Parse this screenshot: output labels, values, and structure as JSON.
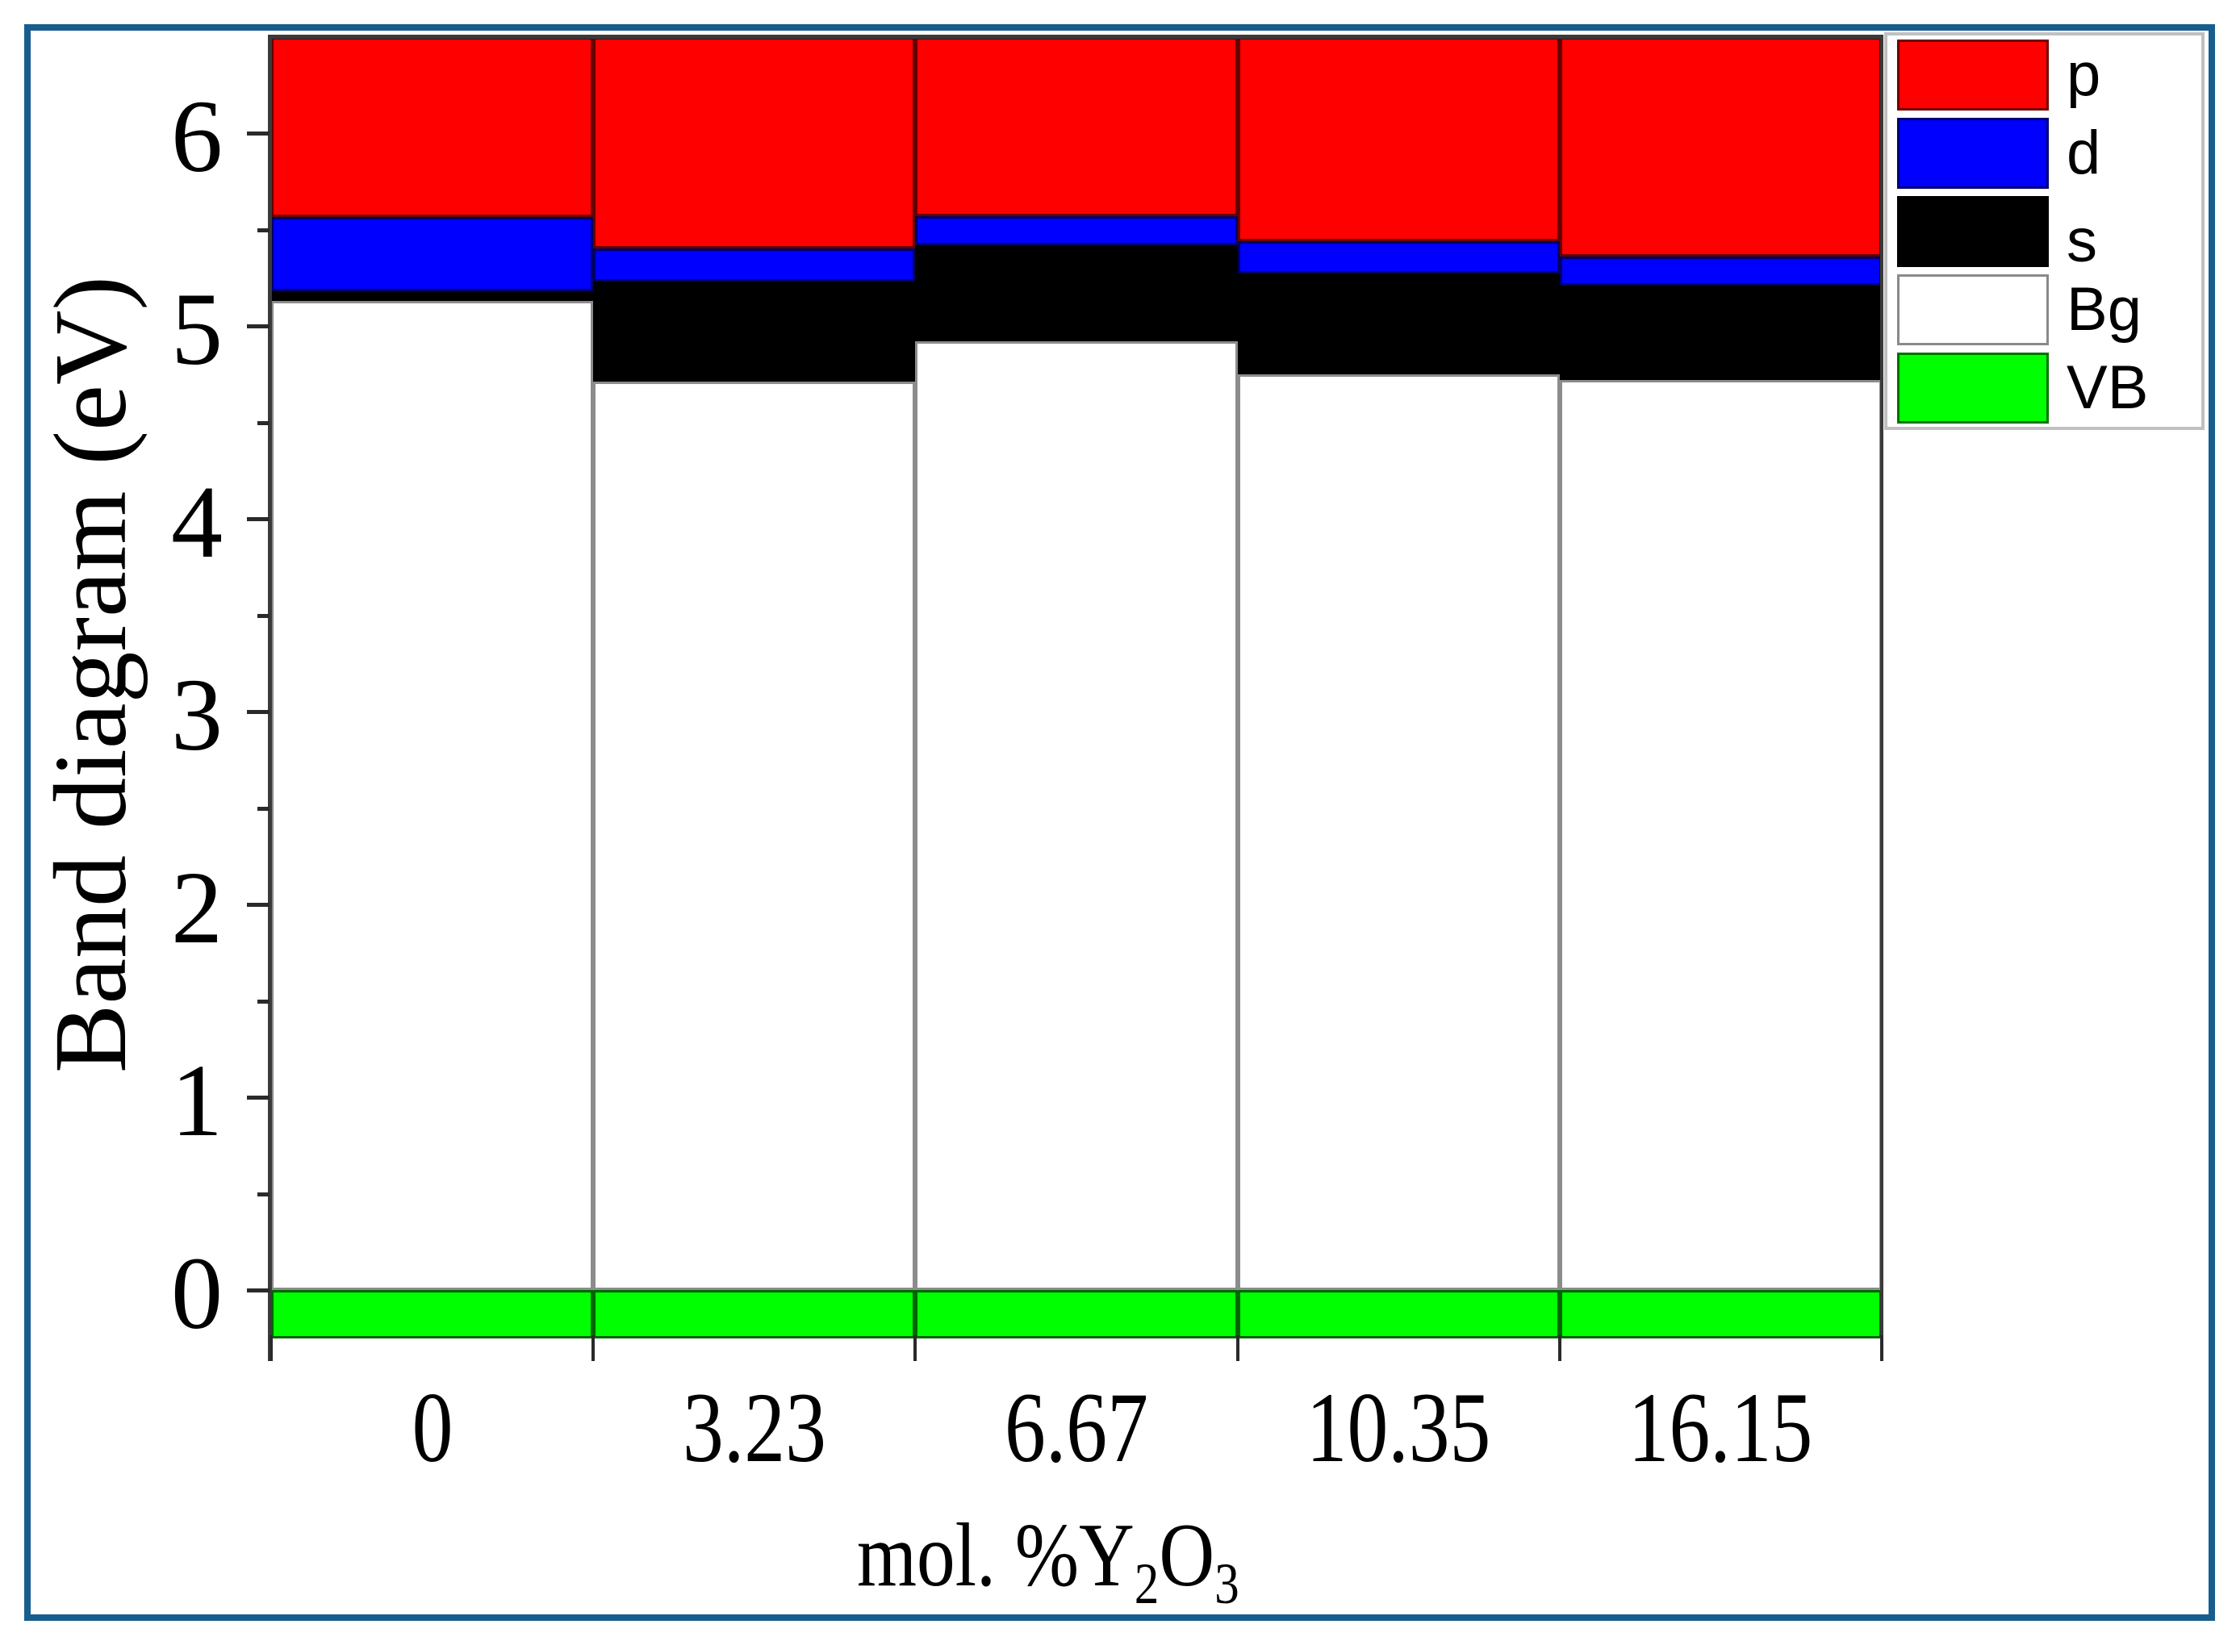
{
  "chart_data": {
    "type": "bar",
    "subtype": "stacked-floating-band-diagram",
    "title": "",
    "xlabel": "mol. %Y2O3",
    "xlabel_parts": {
      "prefix": "mol. %Y",
      "sub1": "2",
      "mid": "O",
      "sub2": "3"
    },
    "ylabel": "Band diagram (eV)",
    "ylim": [
      -0.25,
      6.5
    ],
    "yticks": [
      0,
      1,
      2,
      3,
      4,
      5,
      6
    ],
    "ytick_labels": [
      "0",
      "1",
      "2",
      "3",
      "4",
      "5",
      "6"
    ],
    "minor_yticks_step": 0.5,
    "grid": false,
    "legend_position": "top-right-outside",
    "categories": [
      "0",
      "3.23",
      "6.67",
      "10.35",
      "16.15"
    ],
    "series": [
      {
        "name": "VB",
        "color": "#00ff00",
        "bottom": [
          -0.25,
          -0.25,
          -0.25,
          -0.25,
          -0.25
        ],
        "top": [
          0,
          0,
          0,
          0,
          0
        ]
      },
      {
        "name": "Bg",
        "color": "#ffffff",
        "bottom": [
          0,
          0,
          0,
          0,
          0
        ],
        "top": [
          5.13,
          4.71,
          4.92,
          4.75,
          4.72
        ]
      },
      {
        "name": "s",
        "color": "#000000",
        "bottom": [
          5.13,
          4.71,
          4.92,
          4.75,
          4.72
        ],
        "top": [
          5.18,
          5.23,
          5.42,
          5.27,
          5.21
        ]
      },
      {
        "name": "d",
        "color": "#0000ff",
        "bottom": [
          5.18,
          5.23,
          5.42,
          5.27,
          5.21
        ],
        "top": [
          5.565,
          5.4,
          5.57,
          5.44,
          5.36
        ]
      },
      {
        "name": "p",
        "color": "#ff0000",
        "bottom": [
          5.565,
          5.4,
          5.57,
          5.44,
          5.36
        ],
        "top": [
          6.5,
          6.5,
          6.5,
          6.5,
          6.5
        ]
      }
    ],
    "band_gap_values": [
      5.13,
      4.71,
      4.92,
      4.75,
      4.72
    ]
  },
  "legend": [
    {
      "label": "p",
      "color": "#ff0000"
    },
    {
      "label": "d",
      "color": "#0000ff"
    },
    {
      "label": "s",
      "color": "#000000"
    },
    {
      "label": "Bg",
      "color": "#ffffff"
    },
    {
      "label": "VB",
      "color": "#00ff00"
    }
  ],
  "colors": {
    "frame": "#175e8e",
    "axis": "#3a3a3a"
  }
}
